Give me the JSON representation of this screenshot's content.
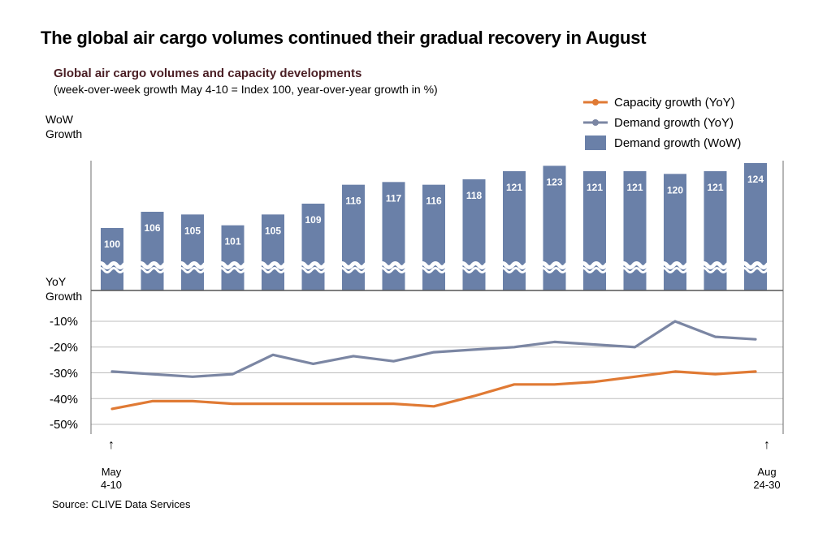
{
  "page_title": "The global air cargo volumes continued their gradual recovery in August",
  "source": "Source: CLIVE Data Services",
  "chart_data": {
    "type": "bar+line",
    "title": "Global air cargo volumes and capacity developments",
    "subtitle": "(week-over-week growth May 4-10 = Index 100, year-over-year growth in %)",
    "wow_axis_label": [
      "WoW",
      "Growth"
    ],
    "yoy_axis_label": [
      "YoY",
      "Growth"
    ],
    "yoy_ticks": [
      "-10%",
      "-20%",
      "-30%",
      "-40%",
      "-50%"
    ],
    "yoy_tick_values": [
      -10,
      -20,
      -30,
      -40,
      -50
    ],
    "yoy_ylim": [
      -50,
      -10
    ],
    "wow_ylim": [
      100,
      124
    ],
    "x_start_label": [
      "May",
      "4-10"
    ],
    "x_end_label": [
      "Aug",
      "24-30"
    ],
    "legend": [
      {
        "name": "Capacity growth (YoY)",
        "type": "line",
        "color": "#e07a34"
      },
      {
        "name": "Demand growth (YoY)",
        "type": "line",
        "color": "#7b86a3"
      },
      {
        "name": "Demand growth (WoW)",
        "type": "bar",
        "color": "#6a80a8"
      }
    ],
    "bars": {
      "name": "Demand growth (WoW)",
      "values": [
        100,
        106,
        105,
        101,
        105,
        109,
        116,
        117,
        116,
        118,
        121,
        123,
        121,
        121,
        120,
        121,
        124
      ],
      "labels": [
        "100",
        "106",
        "105",
        "101",
        "105",
        "109",
        "116",
        "117",
        "116",
        "118",
        "121",
        "123",
        "121",
        "121",
        "120",
        "121",
        "124"
      ]
    },
    "series": [
      {
        "name": "Demand growth (YoY)",
        "values": [
          -29.5,
          -30.5,
          -31.5,
          -30.5,
          -23,
          -26.5,
          -23.5,
          -25.5,
          -22,
          -21,
          -20,
          -18,
          -19,
          -20,
          -10,
          -16,
          -17
        ]
      },
      {
        "name": "Capacity growth (YoY)",
        "values": [
          -44,
          -41,
          -41,
          -42,
          -42,
          -42,
          -42,
          -42,
          -43,
          -39,
          -34.5,
          -34.5,
          -33.5,
          -31.5,
          -29.5,
          -30.5,
          -29.5
        ]
      }
    ],
    "colors": {
      "bar": "#6a80a8",
      "demand_line": "#7b86a3",
      "capacity_line": "#e07a34",
      "grid": "#bdbdbd",
      "axis": "#6e6e6e"
    }
  }
}
